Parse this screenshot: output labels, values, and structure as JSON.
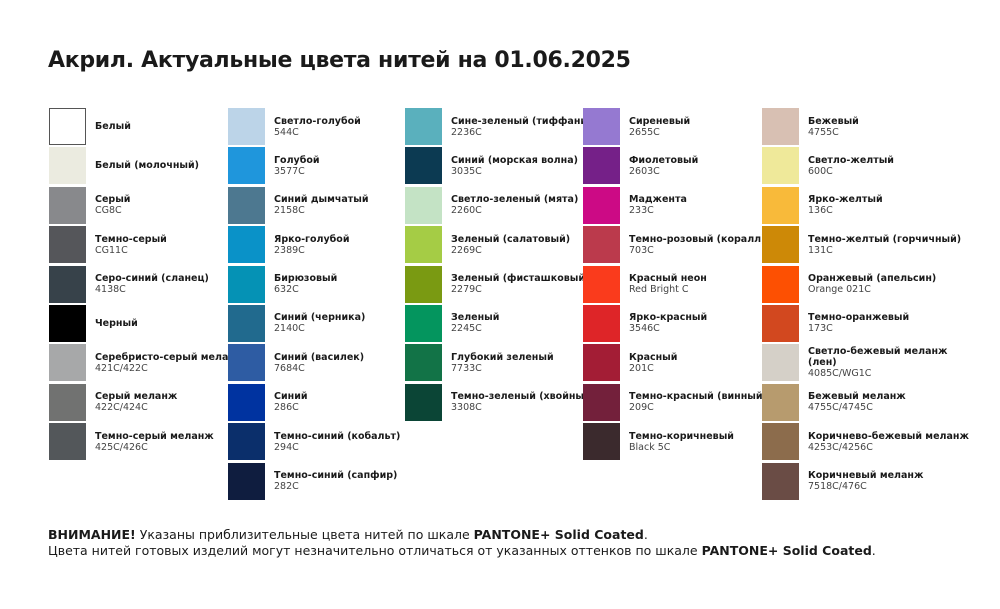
{
  "title": "Акрил. Актуальные цвета нитей на 01.06.2025",
  "columns": [
    [
      {
        "name": "Белый",
        "code": "",
        "color": "#ffffff"
      },
      {
        "name": "Белый (молочный)",
        "code": "",
        "color": "#ebebe0"
      },
      {
        "name": "Серый",
        "code": "CG8C",
        "color": "#88898c"
      },
      {
        "name": "Темно-серый",
        "code": "CG11C",
        "color": "#55565a"
      },
      {
        "name": "Серо-синий (сланец)",
        "code": "4138C",
        "color": "#37424a"
      },
      {
        "name": "Черный",
        "code": "",
        "color": "#000000"
      },
      {
        "name": "Серебристо-серый меланж",
        "code": "421C/422C",
        "color": "#a7a8a9"
      },
      {
        "name": "Серый меланж",
        "code": "422C/424C",
        "color": "#717271"
      },
      {
        "name": "Темно-серый меланж",
        "code": "425C/426C",
        "color": "#53575a"
      }
    ],
    [
      {
        "name": "Светло-голубой",
        "code": "544C",
        "color": "#bcd4e8"
      },
      {
        "name": "Голубой",
        "code": "3577C",
        "color": "#1f96dc"
      },
      {
        "name": "Синий дымчатый",
        "code": "2158C",
        "color": "#4d7890"
      },
      {
        "name": "Ярко-голубой",
        "code": "2389C",
        "color": "#0a92c8"
      },
      {
        "name": "Бирюзовый",
        "code": "632C",
        "color": "#0592b5"
      },
      {
        "name": "Синий (черника)",
        "code": "2140C",
        "color": "#216a8e"
      },
      {
        "name": "Синий (василек)",
        "code": "7684C",
        "color": "#2e5ca3"
      },
      {
        "name": "Синий",
        "code": "286C",
        "color": "#0033a0"
      },
      {
        "name": "Темно-синий (кобальт)",
        "code": "294C",
        "color": "#0b2f6b"
      },
      {
        "name": "Темно-синий (сапфир)",
        "code": "282C",
        "color": "#0f1d3f"
      }
    ],
    [
      {
        "name": "Сине-зеленый (тиффани)",
        "code": "2236C",
        "color": "#5ab0bd"
      },
      {
        "name": "Синий (морская волна)",
        "code": "3035C",
        "color": "#0c3a52"
      },
      {
        "name": "Светло-зеленый (мята)",
        "code": "2260C",
        "color": "#c4e3c5"
      },
      {
        "name": "Зеленый (салатовый)",
        "code": "2269C",
        "color": "#a5cc45"
      },
      {
        "name": "Зеленый (фисташковый)",
        "code": "2279C",
        "color": "#7a9a12"
      },
      {
        "name": "Зеленый",
        "code": "2245C",
        "color": "#04955e"
      },
      {
        "name": "Глубокий зеленый",
        "code": "7733C",
        "color": "#127347"
      },
      {
        "name": "Темно-зеленый (хвойный)",
        "code": "3308C",
        "color": "#0b4536"
      }
    ],
    [
      {
        "name": "Сиреневый",
        "code": "2655C",
        "color": "#9579d1"
      },
      {
        "name": "Фиолетовый",
        "code": "2603C",
        "color": "#752088"
      },
      {
        "name": "Маджента",
        "code": "233C",
        "color": "#cc0a85"
      },
      {
        "name": "Темно-розовый (коралл)",
        "code": "703C",
        "color": "#bb3a4c"
      },
      {
        "name": "Красный неон",
        "code": "Red Bright C",
        "color": "#fa3b1c"
      },
      {
        "name": "Ярко-красный",
        "code": "3546C",
        "color": "#de2528"
      },
      {
        "name": "Красный",
        "code": "201C",
        "color": "#a31d35"
      },
      {
        "name": "Темно-красный (винный)",
        "code": "209C",
        "color": "#73203b"
      },
      {
        "name": "Темно-коричневый",
        "code": "Black 5C",
        "color": "#3b2a2d"
      }
    ],
    [
      {
        "name": "Бежевый",
        "code": "4755C",
        "color": "#d8c0b3"
      },
      {
        "name": "Светло-желтый",
        "code": "600C",
        "color": "#efe99a"
      },
      {
        "name": "Ярко-желтый",
        "code": "136C",
        "color": "#f8ba3a"
      },
      {
        "name": "Темно-желтый (горчичный)",
        "code": "131C",
        "color": "#cd8907"
      },
      {
        "name": "Оранжевый (апельсин)",
        "code": "Orange 021C",
        "color": "#fd5002"
      },
      {
        "name": "Темно-оранжевый",
        "code": "173C",
        "color": "#d2481f"
      },
      {
        "name": "Светло-бежевый меланж (лен)",
        "code": "4085C/WG1C",
        "color": "#d5d0c8"
      },
      {
        "name": "Бежевый меланж",
        "code": "4755C/4745C",
        "color": "#b79b6e"
      },
      {
        "name": "Коричнево-бежевый меланж",
        "code": "4253C/4256C",
        "color": "#8c6c4c"
      },
      {
        "name": "Коричневый меланж",
        "code": "7518C/476C",
        "color": "#6a4c45"
      }
    ]
  ],
  "footer": {
    "line1_bold": "ВНИМАНИЕ!",
    "line1_text": " Указаны приблизительные цвета нитей по шкале ",
    "line1_scale": "PANTONE+ Solid Coated",
    "line1_end": ".",
    "line2_text": "Цвета нитей готовых изделий могут незначительно отличаться от указанных оттенков по шкале ",
    "line2_scale": "PANTONE+ Solid Coated",
    "line2_end": "."
  }
}
